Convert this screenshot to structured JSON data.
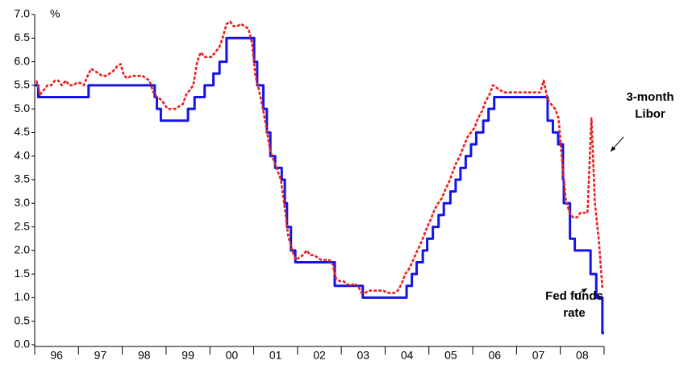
{
  "chart_data": {
    "type": "line",
    "y_label": "%",
    "xlim": [
      1996,
      2009
    ],
    "ylim": [
      0,
      7
    ],
    "xticks": [
      {
        "value": 1996.5,
        "label": "96"
      },
      {
        "value": 1997.5,
        "label": "97"
      },
      {
        "value": 1998.5,
        "label": "98"
      },
      {
        "value": 1999.5,
        "label": "99"
      },
      {
        "value": 2000.5,
        "label": "00"
      },
      {
        "value": 2001.5,
        "label": "01"
      },
      {
        "value": 2002.5,
        "label": "02"
      },
      {
        "value": 2003.5,
        "label": "03"
      },
      {
        "value": 2004.5,
        "label": "04"
      },
      {
        "value": 2005.5,
        "label": "05"
      },
      {
        "value": 2006.5,
        "label": "06"
      },
      {
        "value": 2007.5,
        "label": "07"
      },
      {
        "value": 2008.5,
        "label": "08"
      }
    ],
    "yticks": [
      {
        "value": 0,
        "label": "0.0"
      },
      0.5,
      {
        "value": 1,
        "label": "1.0"
      },
      1.5,
      {
        "value": 2,
        "label": "2.0"
      },
      2.5,
      {
        "value": 3,
        "label": "3.0"
      },
      3.5,
      {
        "value": 4,
        "label": "4.0"
      },
      4.5,
      {
        "value": 5,
        "label": "5.0"
      },
      5.5,
      {
        "value": 6,
        "label": "6.0"
      },
      6.5,
      {
        "value": 7,
        "label": "7.0"
      }
    ],
    "series": [
      {
        "name": "Fed funds rate",
        "color": "#1414e6",
        "step": true,
        "x": [
          1996.0,
          1996.08,
          1997.23,
          1998.74,
          1998.79,
          1998.88,
          1999.5,
          1999.65,
          1999.88,
          2000.08,
          2000.22,
          2000.38,
          2001.01,
          2001.08,
          2001.22,
          2001.3,
          2001.38,
          2001.49,
          2001.64,
          2001.71,
          2001.76,
          2001.85,
          2001.95,
          2002.85,
          2003.49,
          2004.49,
          2004.61,
          2004.72,
          2004.86,
          2004.96,
          2005.09,
          2005.22,
          2005.34,
          2005.49,
          2005.61,
          2005.72,
          2005.84,
          2005.96,
          2006.08,
          2006.24,
          2006.36,
          2006.49,
          2007.71,
          2007.83,
          2007.95,
          2008.06,
          2008.08,
          2008.22,
          2008.33,
          2008.69,
          2008.82,
          2008.96,
          2009.0
        ],
        "values": [
          5.5,
          5.25,
          5.5,
          5.25,
          5.0,
          4.75,
          5.0,
          5.25,
          5.5,
          5.75,
          6.0,
          6.5,
          6.0,
          5.5,
          5.0,
          4.5,
          4.0,
          3.75,
          3.5,
          3.0,
          2.5,
          2.0,
          1.75,
          1.25,
          1.0,
          1.25,
          1.5,
          1.75,
          2.0,
          2.25,
          2.5,
          2.75,
          3.0,
          3.25,
          3.5,
          3.75,
          4.0,
          4.25,
          4.5,
          4.75,
          5.0,
          5.25,
          4.75,
          4.5,
          4.25,
          3.5,
          3.0,
          2.25,
          2.0,
          1.5,
          1.0,
          0.25,
          0.25
        ]
      },
      {
        "name": "3-month Libor",
        "color": "#e8211d",
        "dashed": true,
        "x": [
          1996.04,
          1996.12,
          1996.21,
          1996.29,
          1996.38,
          1996.46,
          1996.54,
          1996.62,
          1996.71,
          1996.79,
          1996.88,
          1996.96,
          1997.04,
          1997.12,
          1997.21,
          1997.29,
          1997.38,
          1997.46,
          1997.54,
          1997.62,
          1997.71,
          1997.79,
          1997.88,
          1997.96,
          1998.04,
          1998.12,
          1998.21,
          1998.29,
          1998.38,
          1998.46,
          1998.54,
          1998.62,
          1998.71,
          1998.79,
          1998.88,
          1998.96,
          1999.04,
          1999.12,
          1999.21,
          1999.29,
          1999.38,
          1999.46,
          1999.54,
          1999.62,
          1999.71,
          1999.79,
          1999.88,
          1999.96,
          2000.04,
          2000.12,
          2000.21,
          2000.29,
          2000.38,
          2000.46,
          2000.54,
          2000.62,
          2000.71,
          2000.79,
          2000.88,
          2000.96,
          2001.04,
          2001.12,
          2001.21,
          2001.29,
          2001.38,
          2001.46,
          2001.54,
          2001.62,
          2001.71,
          2001.79,
          2001.88,
          2001.96,
          2002.04,
          2002.12,
          2002.21,
          2002.29,
          2002.38,
          2002.46,
          2002.54,
          2002.62,
          2002.71,
          2002.79,
          2002.88,
          2002.96,
          2003.04,
          2003.12,
          2003.21,
          2003.29,
          2003.38,
          2003.46,
          2003.54,
          2003.62,
          2003.71,
          2003.79,
          2003.88,
          2003.96,
          2004.04,
          2004.12,
          2004.21,
          2004.29,
          2004.38,
          2004.46,
          2004.54,
          2004.62,
          2004.71,
          2004.79,
          2004.88,
          2004.96,
          2005.04,
          2005.12,
          2005.21,
          2005.29,
          2005.38,
          2005.46,
          2005.54,
          2005.62,
          2005.71,
          2005.79,
          2005.88,
          2005.96,
          2006.04,
          2006.12,
          2006.21,
          2006.29,
          2006.38,
          2006.46,
          2006.54,
          2006.62,
          2006.71,
          2006.79,
          2006.88,
          2006.96,
          2007.04,
          2007.12,
          2007.21,
          2007.29,
          2007.38,
          2007.46,
          2007.54,
          2007.62,
          2007.71,
          2007.79,
          2007.88,
          2007.96,
          2008.04,
          2008.12,
          2008.21,
          2008.29,
          2008.38,
          2008.46,
          2008.54,
          2008.62,
          2008.71,
          2008.79,
          2008.88,
          2008.96
        ],
        "values": [
          5.6,
          5.3,
          5.4,
          5.5,
          5.5,
          5.6,
          5.6,
          5.5,
          5.6,
          5.5,
          5.5,
          5.55,
          5.55,
          5.5,
          5.7,
          5.85,
          5.8,
          5.75,
          5.7,
          5.7,
          5.75,
          5.8,
          5.9,
          5.95,
          5.7,
          5.65,
          5.7,
          5.7,
          5.7,
          5.7,
          5.65,
          5.6,
          5.35,
          5.25,
          5.2,
          5.1,
          5.0,
          5.0,
          5.0,
          5.05,
          5.1,
          5.3,
          5.4,
          5.5,
          6.0,
          6.2,
          6.1,
          6.1,
          6.1,
          6.2,
          6.3,
          6.5,
          6.8,
          6.85,
          6.75,
          6.75,
          6.8,
          6.75,
          6.7,
          6.4,
          5.7,
          5.4,
          5.0,
          4.6,
          4.1,
          3.9,
          3.7,
          3.5,
          2.9,
          2.3,
          2.0,
          1.8,
          1.85,
          1.9,
          2.0,
          1.9,
          1.9,
          1.85,
          1.8,
          1.8,
          1.8,
          1.75,
          1.4,
          1.35,
          1.35,
          1.3,
          1.25,
          1.3,
          1.25,
          1.1,
          1.1,
          1.15,
          1.15,
          1.15,
          1.15,
          1.15,
          1.1,
          1.1,
          1.1,
          1.15,
          1.3,
          1.5,
          1.6,
          1.75,
          1.95,
          2.1,
          2.3,
          2.5,
          2.65,
          2.85,
          3.0,
          3.1,
          3.3,
          3.45,
          3.65,
          3.85,
          4.0,
          4.2,
          4.4,
          4.5,
          4.6,
          4.8,
          4.95,
          5.15,
          5.3,
          5.5,
          5.45,
          5.4,
          5.35,
          5.35,
          5.35,
          5.35,
          5.35,
          5.35,
          5.35,
          5.35,
          5.35,
          5.35,
          5.35,
          5.6,
          5.2,
          5.1,
          5.0,
          4.8,
          3.9,
          3.1,
          2.8,
          2.7,
          2.7,
          2.8,
          2.8,
          2.8,
          4.8,
          3.0,
          2.2,
          1.2
        ]
      }
    ]
  }
}
